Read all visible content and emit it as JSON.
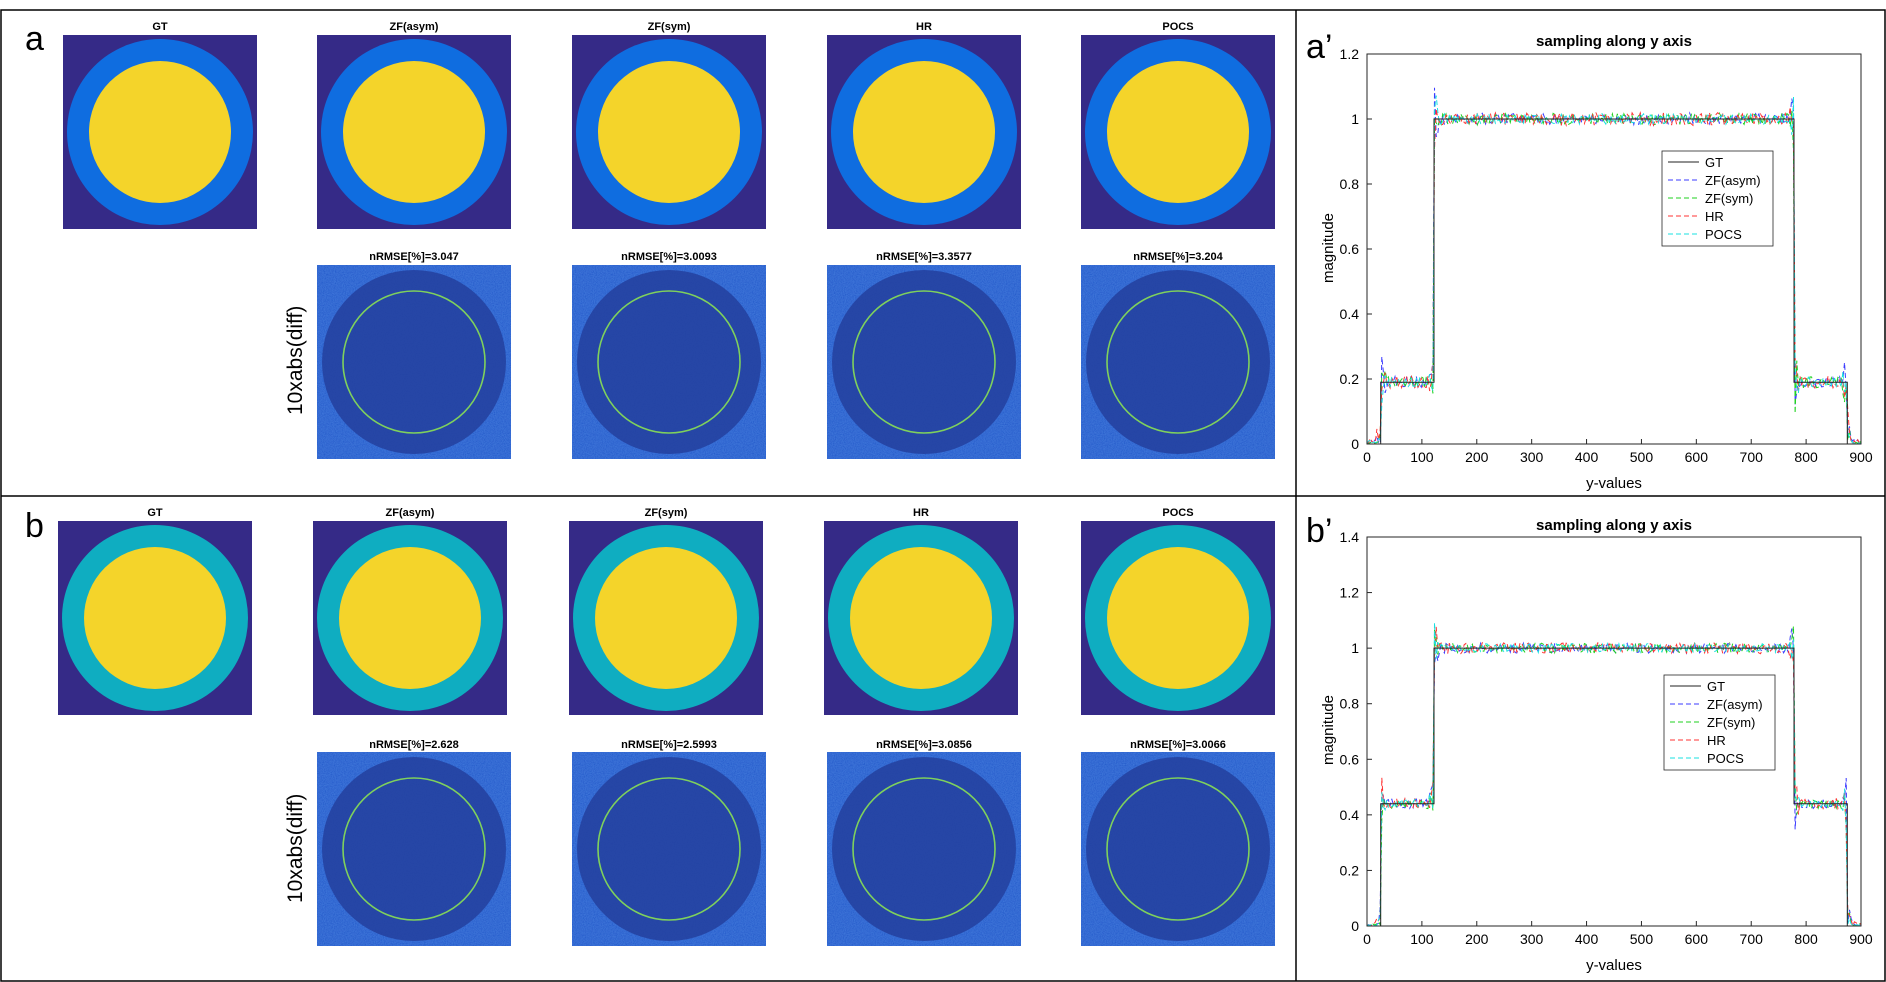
{
  "colors": {
    "background": "#352a87",
    "outer_ring_a": "#0f6de0",
    "outer_ring_b": "#0fadc1",
    "inner_disk": "#f4d42a",
    "diff_bg": "#1e55c8",
    "diff_inner": "#203d9e",
    "diff_ring": "#7fd15c",
    "gt": "#222222",
    "zf_asym": "#3b3bff",
    "zf_sym": "#1fd11f",
    "hr": "#ff3333",
    "pocs": "#19e0e0"
  },
  "panels": [
    {
      "label": "a",
      "image_titles": [
        "GT",
        "ZF(asym)",
        "ZF(sym)",
        "HR",
        "POCS"
      ],
      "diff_label": "10xabs(diff)",
      "diff_titles": [
        "nRMSE[%]=3.047",
        "nRMSE[%]=3.0093",
        "nRMSE[%]=3.3577",
        "nRMSE[%]=3.204"
      ]
    },
    {
      "label": "b",
      "image_titles": [
        "GT",
        "ZF(asym)",
        "ZF(sym)",
        "HR",
        "POCS"
      ],
      "diff_label": "10xabs(diff)",
      "diff_titles": [
        "nRMSE[%]=2.628",
        "nRMSE[%]=2.5993",
        "nRMSE[%]=3.0856",
        "nRMSE[%]=3.0066"
      ]
    }
  ],
  "chart_data": [
    {
      "label": "a’",
      "type": "line",
      "title": "sampling along y axis",
      "xlabel": "y-values",
      "ylabel": "magnitude",
      "xlim": [
        0,
        900
      ],
      "ylim": [
        0,
        1.2
      ],
      "xticks": [
        "0",
        "100",
        "200",
        "300",
        "400",
        "500",
        "600",
        "700",
        "800",
        "900"
      ],
      "yticks": [
        "0",
        "0.2",
        "0.4",
        "0.6",
        "0.8",
        "1",
        "1.2"
      ],
      "legend_position": "upper-right",
      "profile": {
        "x": [
          0,
          25,
          25,
          122,
          122,
          778,
          778,
          875,
          875,
          900
        ],
        "y": [
          0,
          0,
          0.19,
          0.19,
          1.0,
          1.0,
          0.19,
          0.19,
          0,
          0
        ]
      },
      "series": [
        {
          "name": "GT",
          "style": "solid",
          "noise": 0
        },
        {
          "name": "ZF(asym)",
          "style": "dashed",
          "noise": 0.018
        },
        {
          "name": "ZF(sym)",
          "style": "dashed",
          "noise": 0.018
        },
        {
          "name": "HR",
          "style": "dashed",
          "noise": 0.02
        },
        {
          "name": "POCS",
          "style": "dashed",
          "noise": 0.016
        }
      ]
    },
    {
      "label": "b’",
      "type": "line",
      "title": "sampling along y axis",
      "xlabel": "y-values",
      "ylabel": "magnitude",
      "xlim": [
        0,
        900
      ],
      "ylim": [
        0,
        1.4
      ],
      "xticks": [
        "0",
        "100",
        "200",
        "300",
        "400",
        "500",
        "600",
        "700",
        "800",
        "900"
      ],
      "yticks": [
        "0",
        "0.2",
        "0.4",
        "0.6",
        "0.8",
        "1",
        "1.2",
        "1.4"
      ],
      "legend_position": "right-center",
      "profile": {
        "x": [
          0,
          25,
          25,
          122,
          122,
          778,
          778,
          875,
          875,
          900
        ],
        "y": [
          0,
          0,
          0.44,
          0.44,
          1.0,
          1.0,
          0.44,
          0.44,
          0,
          0
        ]
      },
      "series": [
        {
          "name": "GT",
          "style": "solid",
          "noise": 0
        },
        {
          "name": "ZF(asym)",
          "style": "dashed",
          "noise": 0.018
        },
        {
          "name": "ZF(sym)",
          "style": "dashed",
          "noise": 0.018
        },
        {
          "name": "HR",
          "style": "dashed",
          "noise": 0.02
        },
        {
          "name": "POCS",
          "style": "dashed",
          "noise": 0.016
        }
      ]
    }
  ]
}
